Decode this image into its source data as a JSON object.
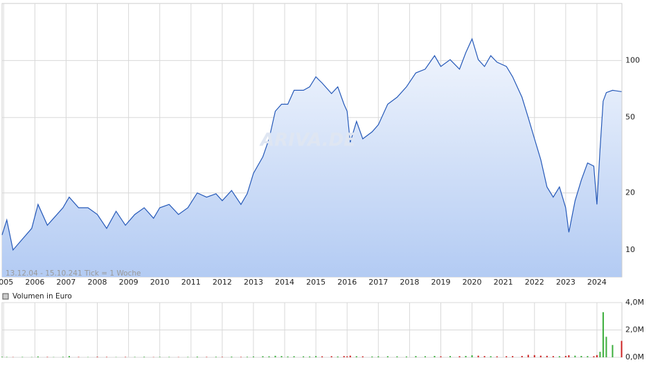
{
  "chart_data": {
    "type": "line",
    "log_scale": true,
    "grid": true,
    "color": "#2458b8",
    "range_note": "13.12.04 - 15.10.24",
    "tick_note": "1 Tick = 1 Woche",
    "watermark": "ARIVA.DE",
    "xlim": [
      2004.95,
      2024.8
    ],
    "ylim": [
      7.2,
      200
    ],
    "xticks": [
      2005,
      2006,
      2007,
      2008,
      2009,
      2010,
      2011,
      2012,
      2013,
      2014,
      2015,
      2016,
      2017,
      2018,
      2019,
      2020,
      2021,
      2022,
      2023,
      2024
    ],
    "yticks": [
      10,
      20,
      50,
      100
    ],
    "x": [
      2004.95,
      2005.1,
      2005.3,
      2005.6,
      2005.9,
      2006.1,
      2006.4,
      2006.6,
      2006.9,
      2007.1,
      2007.4,
      2007.7,
      2008.0,
      2008.3,
      2008.6,
      2008.9,
      2009.2,
      2009.5,
      2009.8,
      2010.0,
      2010.3,
      2010.6,
      2010.9,
      2011.2,
      2011.5,
      2011.8,
      2012.0,
      2012.3,
      2012.6,
      2012.8,
      2013.0,
      2013.3,
      2013.5,
      2013.7,
      2013.9,
      2014.1,
      2014.3,
      2014.6,
      2014.8,
      2015.0,
      2015.2,
      2015.5,
      2015.7,
      2015.9,
      2016.0,
      2016.1,
      2016.3,
      2016.5,
      2016.8,
      2017.0,
      2017.3,
      2017.6,
      2017.9,
      2018.2,
      2018.5,
      2018.8,
      2019.0,
      2019.3,
      2019.6,
      2019.8,
      2020.0,
      2020.2,
      2020.4,
      2020.6,
      2020.8,
      2021.1,
      2021.3,
      2021.6,
      2021.8,
      2022.0,
      2022.2,
      2022.4,
      2022.6,
      2022.8,
      2023.0,
      2023.1,
      2023.3,
      2023.5,
      2023.7,
      2023.9,
      2024.0,
      2024.1,
      2024.2,
      2024.3,
      2024.5,
      2024.79
    ],
    "values": [
      12,
      14.4,
      10,
      11.4,
      13,
      17.4,
      13.5,
      14.7,
      16.7,
      19,
      16.7,
      16.7,
      15.4,
      13,
      16,
      13.5,
      15.4,
      16.7,
      14.7,
      16.7,
      17.4,
      15.4,
      16.7,
      20,
      19,
      19.8,
      18.2,
      20.6,
      17.4,
      19.8,
      25.4,
      31,
      38.6,
      54,
      58.8,
      58.8,
      69.6,
      69.6,
      72.6,
      82,
      76,
      66.9,
      72.6,
      58.8,
      54,
      37,
      47.7,
      38.6,
      42,
      45.8,
      58.8,
      64,
      72.6,
      86,
      90,
      106,
      93,
      101,
      90,
      110,
      130,
      101,
      93,
      106,
      98,
      93,
      82,
      64,
      50,
      38.6,
      30,
      21.5,
      19,
      21.5,
      16.7,
      12.4,
      18.2,
      23.4,
      28.8,
      27.7,
      17.4,
      34,
      61,
      67.7,
      69.6,
      68.5
    ],
    "volume": {
      "label": "Volumen in Euro",
      "ylim": [
        0,
        4000000
      ],
      "yticks": [
        {
          "value": 0,
          "label": "0,0M"
        },
        {
          "value": 2000000,
          "label": "2,0M"
        },
        {
          "value": 4000000,
          "label": "4,0M"
        }
      ],
      "up_color": "#3cae3c",
      "down_color": "#cc2222",
      "values": [
        40000,
        30000,
        20000,
        30000,
        20000,
        60000,
        30000,
        20000,
        40000,
        90000,
        30000,
        20000,
        40000,
        30000,
        20000,
        30000,
        30000,
        40000,
        20000,
        30000,
        30000,
        20000,
        30000,
        50000,
        30000,
        40000,
        30000,
        50000,
        30000,
        40000,
        60000,
        80000,
        70000,
        110000,
        90000,
        60000,
        80000,
        70000,
        60000,
        90000,
        70000,
        80000,
        60000,
        90000,
        70000,
        120000,
        80000,
        70000,
        60000,
        70000,
        80000,
        70000,
        60000,
        90000,
        80000,
        100000,
        70000,
        90000,
        80000,
        100000,
        150000,
        120000,
        90000,
        80000,
        70000,
        80000,
        90000,
        100000,
        180000,
        160000,
        120000,
        110000,
        90000,
        80000,
        100000,
        150000,
        120000,
        100000,
        90000,
        80000,
        160000,
        400000,
        3300000,
        1500000,
        900000,
        1200000
      ]
    }
  }
}
